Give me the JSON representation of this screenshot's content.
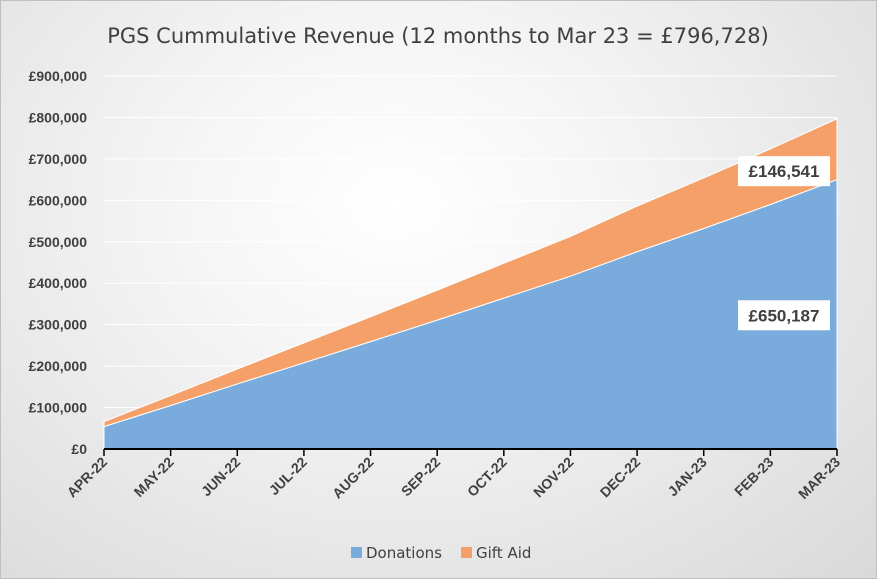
{
  "chart_data": {
    "type": "area",
    "stacked": true,
    "title": "PGS Cummulative Revenue (12 months to Mar 23 = £796,728)",
    "xlabel": "",
    "ylabel": "",
    "categories": [
      "APR-22",
      "MAY-22",
      "JUN-22",
      "JUL-22",
      "AUG-22",
      "SEP-22",
      "OCT-22",
      "NOV-22",
      "DEC-22",
      "JAN-23",
      "FEB-23",
      "MAR-23"
    ],
    "ylim": [
      0,
      900000
    ],
    "yticks": [
      "£0",
      "£100,000",
      "£200,000",
      "£300,000",
      "£400,000",
      "£500,000",
      "£600,000",
      "£700,000",
      "£800,000",
      "£900,000"
    ],
    "series": [
      {
        "name": "Donations",
        "color": "#7aabdd",
        "values": [
          54000,
          105000,
          157000,
          208000,
          259000,
          311000,
          364000,
          417000,
          476000,
          532000,
          590000,
          650187
        ]
      },
      {
        "name": "Gift Aid",
        "color": "#f4a068",
        "values": [
          12000,
          24000,
          36000,
          48000,
          60000,
          72000,
          84000,
          96000,
          110000,
          122000,
          134000,
          146541
        ]
      }
    ],
    "grid": true,
    "legend": "bottom",
    "annotations": [
      {
        "text": "£146,541",
        "series": "Gift Aid"
      },
      {
        "text": "£650,187",
        "series": "Donations"
      }
    ]
  }
}
